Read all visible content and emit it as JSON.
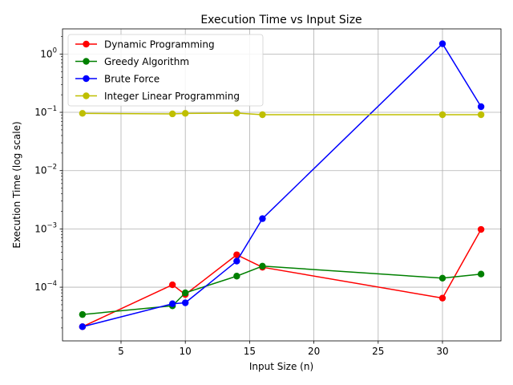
{
  "chart_data": {
    "type": "line",
    "title": "Execution Time vs Input Size",
    "xlabel": "Input Size (n)",
    "ylabel": "Execution Time (log scale)",
    "yscale": "log",
    "xlim": [
      0.45,
      34.55
    ],
    "ylim": [
      1.2e-05,
      2.7
    ],
    "x_ticks": [
      5,
      10,
      15,
      20,
      25,
      30
    ],
    "y_ticks": [
      {
        "value": 0.0001,
        "label": "10",
        "exp": "−4"
      },
      {
        "value": 0.001,
        "label": "10",
        "exp": "−3"
      },
      {
        "value": 0.01,
        "label": "10",
        "exp": "−2"
      },
      {
        "value": 0.1,
        "label": "10",
        "exp": "−1"
      },
      {
        "value": 1,
        "label": "10",
        "exp": "0"
      }
    ],
    "grid": true,
    "legend_position": "top-left",
    "x": [
      2,
      9,
      10,
      14,
      16,
      30,
      33
    ],
    "series": [
      {
        "name": "Dynamic Programming",
        "color": "#ff0000",
        "values": [
          2.1e-05,
          0.00011,
          7.5e-05,
          0.00036,
          0.00022,
          6.5e-05,
          0.00098
        ]
      },
      {
        "name": "Greedy Algorithm",
        "color": "#008000",
        "values": [
          3.4e-05,
          4.8e-05,
          8e-05,
          0.000155,
          0.00023,
          0.000143,
          0.000168
        ]
      },
      {
        "name": "Brute Force",
        "color": "#0000ff",
        "values": [
          2.1e-05,
          5.2e-05,
          5.4e-05,
          0.00028,
          0.0015,
          1.5,
          0.125
        ]
      },
      {
        "name": "Integer Linear Programming",
        "color": "#bfbf00",
        "values": [
          0.096,
          0.094,
          0.096,
          0.097,
          0.091,
          0.091,
          0.091
        ]
      }
    ]
  }
}
